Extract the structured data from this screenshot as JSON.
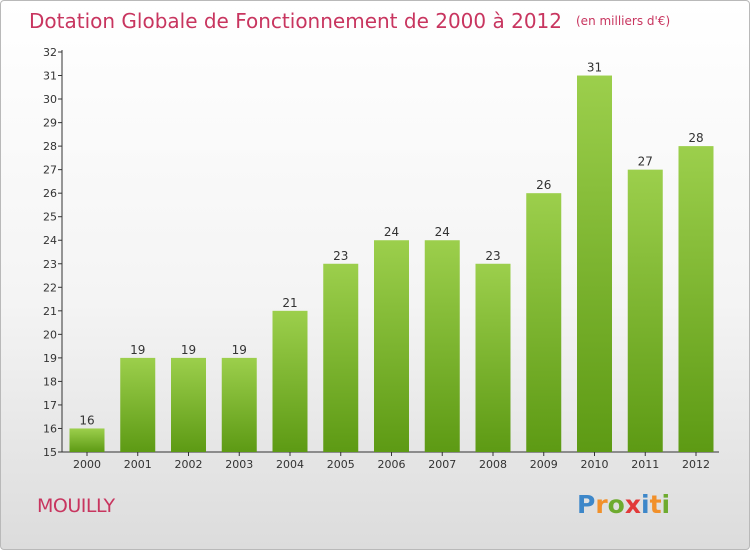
{
  "header": {
    "title": "Dotation Globale de Fonctionnement de 2000 à 2012",
    "unit_note": "(en milliers d'€)"
  },
  "footer": {
    "commune": "MOUILLY",
    "logo_text": "Proxiti"
  },
  "colors": {
    "title": "#c8355f",
    "bar_light": "#9ccf4c",
    "bar_dark": "#5d9a14",
    "axis": "#333333"
  },
  "chart_data": {
    "type": "bar",
    "categories": [
      "2000",
      "2001",
      "2002",
      "2003",
      "2004",
      "2005",
      "2006",
      "2007",
      "2008",
      "2009",
      "2010",
      "2011",
      "2012"
    ],
    "values": [
      16,
      19,
      19,
      19,
      21,
      23,
      24,
      24,
      23,
      26,
      31,
      27,
      28
    ],
    "data_labels": [
      "16",
      "19",
      "19",
      "19",
      "21",
      "23",
      "24",
      "24",
      "23",
      "26",
      "31",
      "27",
      "28"
    ],
    "y_ticks": [
      "15",
      "16",
      "17",
      "18",
      "19",
      "20",
      "21",
      "22",
      "23",
      "24",
      "25",
      "26",
      "27",
      "28",
      "29",
      "30",
      "31",
      "32"
    ],
    "ylim": [
      15,
      32
    ],
    "grid": false,
    "legend": "none"
  }
}
